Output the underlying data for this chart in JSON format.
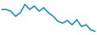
{
  "x": [
    0,
    1,
    2,
    3,
    4,
    5,
    6,
    7,
    8,
    9,
    10,
    11,
    12,
    13,
    14,
    15,
    16,
    17,
    18,
    19,
    20
  ],
  "y": [
    21,
    21,
    20,
    17,
    19,
    24,
    21,
    23,
    20,
    22,
    19,
    17,
    14,
    13,
    14.5,
    12,
    15,
    11,
    12,
    9,
    8
  ],
  "line_color": "#1a8fc1",
  "line_width": 1.2,
  "background_color": "#ffffff",
  "ylim": [
    6,
    27
  ],
  "xlim": [
    -0.3,
    20.3
  ]
}
